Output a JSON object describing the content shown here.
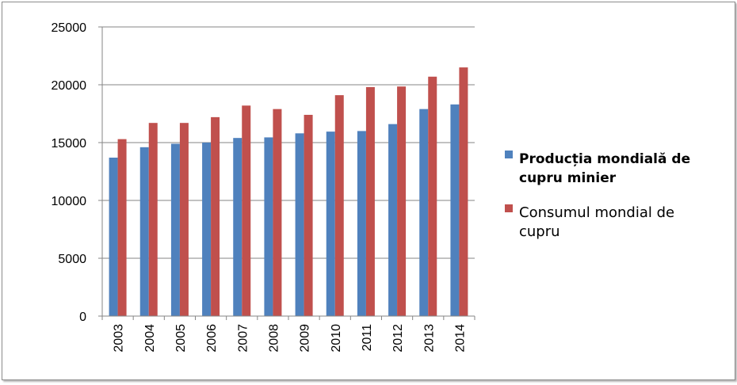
{
  "chart_data": {
    "type": "bar",
    "title": "",
    "xlabel": "",
    "ylabel": "",
    "categories": [
      "2003",
      "2004",
      "2005",
      "2006",
      "2007",
      "2008",
      "2009",
      "2010",
      "2011",
      "2012",
      "2013",
      "2014"
    ],
    "series": [
      {
        "name": "Producția mondială de cupru minier",
        "legend_lines": [
          "Producția mondială de",
          "cupru minier"
        ],
        "color": "#4f81bd",
        "values": [
          13700,
          14600,
          14900,
          15000,
          15400,
          15450,
          15800,
          15950,
          16000,
          16600,
          17900,
          18300
        ]
      },
      {
        "name": "Consumul mondial de cupru",
        "legend_lines": [
          "Consumul mondial de",
          "cupru"
        ],
        "color": "#c0504d",
        "values": [
          15300,
          16700,
          16700,
          17200,
          18200,
          17900,
          17400,
          19100,
          19800,
          19850,
          20700,
          21500
        ]
      }
    ],
    "ylim": [
      0,
      25000
    ],
    "yticks": [
      "0",
      "5000",
      "10000",
      "15000",
      "20000",
      "25000"
    ],
    "grid": true,
    "legend_position": "right"
  }
}
